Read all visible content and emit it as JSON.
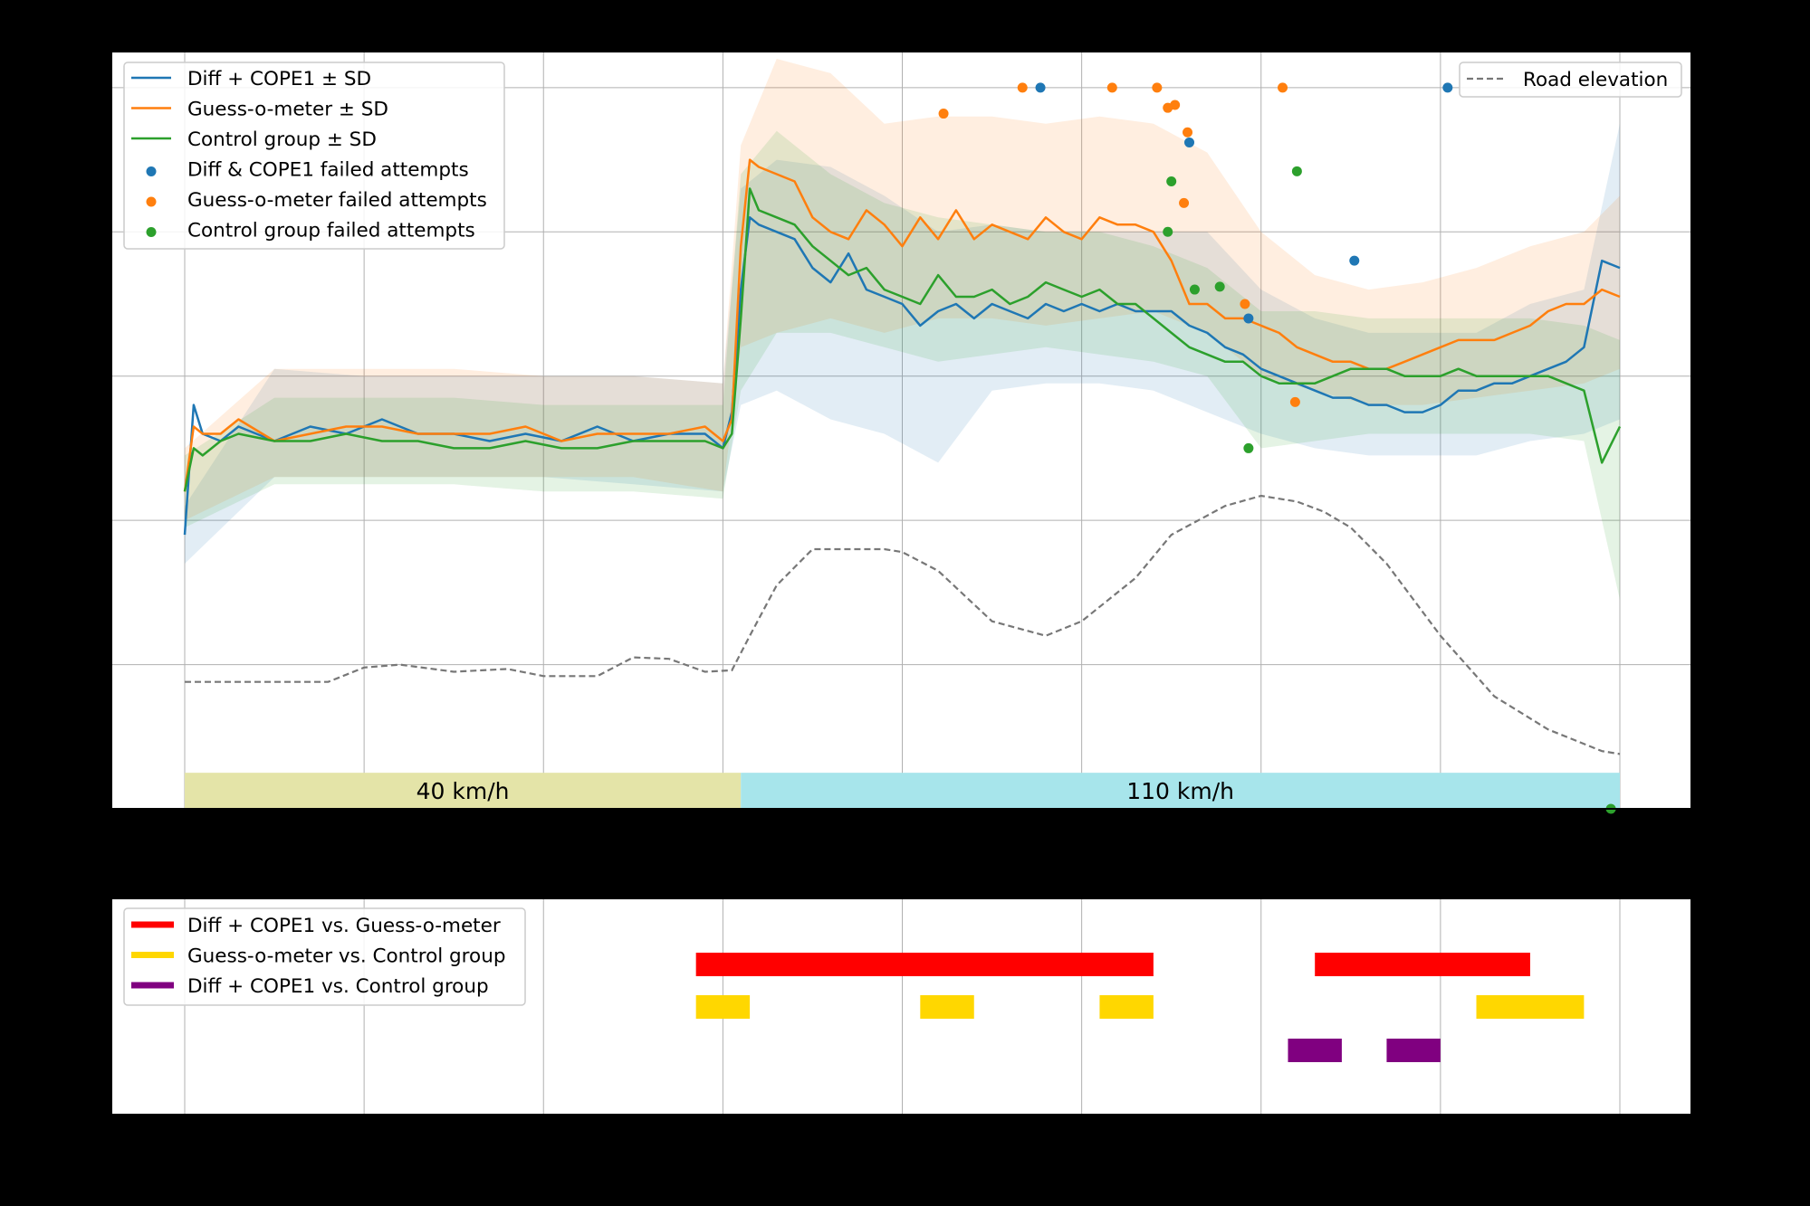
{
  "chart_data": [
    {
      "type": "line",
      "title": "",
      "xlabel": "",
      "ylabel": "",
      "xlim": [
        -0.4,
        8.4
      ],
      "ylim": [
        0,
        5.25
      ],
      "grid": true,
      "colors": {
        "diff": "#1f77b4",
        "guess": "#ff7f0e",
        "control": "#2ca02c",
        "elevation": "#777777",
        "zone40": "#e4e4a8",
        "zone110": "#a7e5eb"
      },
      "legend_upper_left": [
        "Diff + COPE1 ± SD",
        "Guess-o-meter ± SD",
        "Control group ± SD",
        "Diff & COPE1 failed attempts",
        "Guess-o-meter failed attempts",
        "Control group failed attempts"
      ],
      "legend_upper_right": [
        "Road elevation"
      ],
      "zones": [
        {
          "label": "40 km/h",
          "x": [
            0,
            3.1
          ]
        },
        {
          "label": "110 km/h",
          "x": [
            3.1,
            8.0
          ]
        }
      ],
      "series_means": [
        {
          "name": "Diff + COPE1",
          "x": [
            0,
            0.05,
            0.1,
            0.2,
            0.3,
            0.5,
            0.7,
            0.9,
            1.1,
            1.3,
            1.5,
            1.7,
            1.9,
            2.1,
            2.3,
            2.5,
            2.7,
            2.9,
            3.0,
            3.05,
            3.1,
            3.15,
            3.2,
            3.3,
            3.4,
            3.5,
            3.6,
            3.7,
            3.8,
            3.9,
            4.0,
            4.1,
            4.2,
            4.3,
            4.4,
            4.5,
            4.6,
            4.7,
            4.8,
            4.9,
            5.0,
            5.1,
            5.2,
            5.3,
            5.4,
            5.5,
            5.6,
            5.7,
            5.8,
            5.9,
            6.0,
            6.1,
            6.2,
            6.3,
            6.4,
            6.5,
            6.6,
            6.7,
            6.8,
            6.9,
            7.0,
            7.1,
            7.2,
            7.3,
            7.4,
            7.5,
            7.6,
            7.7,
            7.8,
            7.9,
            8.0
          ],
          "y": [
            1.9,
            2.8,
            2.6,
            2.55,
            2.65,
            2.55,
            2.65,
            2.6,
            2.7,
            2.6,
            2.6,
            2.55,
            2.6,
            2.55,
            2.65,
            2.55,
            2.6,
            2.6,
            2.5,
            2.75,
            3.6,
            4.1,
            4.05,
            4.0,
            3.95,
            3.75,
            3.65,
            3.85,
            3.6,
            3.55,
            3.5,
            3.35,
            3.45,
            3.5,
            3.4,
            3.5,
            3.45,
            3.4,
            3.5,
            3.45,
            3.5,
            3.45,
            3.5,
            3.45,
            3.45,
            3.45,
            3.35,
            3.3,
            3.2,
            3.15,
            3.05,
            3.0,
            2.95,
            2.9,
            2.85,
            2.85,
            2.8,
            2.8,
            2.75,
            2.75,
            2.8,
            2.9,
            2.9,
            2.95,
            2.95,
            3.0,
            3.05,
            3.1,
            3.2,
            3.8,
            3.75
          ]
        },
        {
          "name": "Guess-o-meter",
          "x": [
            0,
            0.05,
            0.1,
            0.2,
            0.3,
            0.5,
            0.7,
            0.9,
            1.1,
            1.3,
            1.5,
            1.7,
            1.9,
            2.1,
            2.3,
            2.5,
            2.7,
            2.9,
            3.0,
            3.05,
            3.1,
            3.15,
            3.2,
            3.3,
            3.4,
            3.5,
            3.6,
            3.7,
            3.8,
            3.9,
            4.0,
            4.1,
            4.2,
            4.3,
            4.4,
            4.5,
            4.6,
            4.7,
            4.8,
            4.9,
            5.0,
            5.1,
            5.2,
            5.3,
            5.4,
            5.5,
            5.6,
            5.7,
            5.8,
            5.9,
            6.0,
            6.1,
            6.2,
            6.3,
            6.4,
            6.5,
            6.6,
            6.7,
            6.8,
            6.9,
            7.0,
            7.1,
            7.2,
            7.3,
            7.4,
            7.5,
            7.6,
            7.7,
            7.8,
            7.9,
            8.0
          ],
          "y": [
            2.2,
            2.65,
            2.6,
            2.6,
            2.7,
            2.55,
            2.6,
            2.65,
            2.65,
            2.6,
            2.6,
            2.6,
            2.65,
            2.55,
            2.6,
            2.6,
            2.6,
            2.65,
            2.55,
            2.7,
            3.9,
            4.5,
            4.45,
            4.4,
            4.35,
            4.1,
            4.0,
            3.95,
            4.15,
            4.05,
            3.9,
            4.1,
            3.95,
            4.15,
            3.95,
            4.05,
            4.0,
            3.95,
            4.1,
            4.0,
            3.95,
            4.1,
            4.05,
            4.05,
            4.0,
            3.8,
            3.5,
            3.5,
            3.4,
            3.4,
            3.35,
            3.3,
            3.2,
            3.15,
            3.1,
            3.1,
            3.05,
            3.05,
            3.1,
            3.15,
            3.2,
            3.25,
            3.25,
            3.25,
            3.3,
            3.35,
            3.45,
            3.5,
            3.5,
            3.6,
            3.55
          ]
        },
        {
          "name": "Control group",
          "x": [
            0,
            0.05,
            0.1,
            0.2,
            0.3,
            0.5,
            0.7,
            0.9,
            1.1,
            1.3,
            1.5,
            1.7,
            1.9,
            2.1,
            2.3,
            2.5,
            2.7,
            2.9,
            3.0,
            3.05,
            3.1,
            3.15,
            3.2,
            3.3,
            3.4,
            3.5,
            3.6,
            3.7,
            3.8,
            3.9,
            4.0,
            4.1,
            4.2,
            4.3,
            4.4,
            4.5,
            4.6,
            4.7,
            4.8,
            4.9,
            5.0,
            5.1,
            5.2,
            5.3,
            5.4,
            5.5,
            5.6,
            5.7,
            5.8,
            5.9,
            6.0,
            6.1,
            6.2,
            6.3,
            6.4,
            6.5,
            6.6,
            6.7,
            6.8,
            6.9,
            7.0,
            7.1,
            7.2,
            7.3,
            7.4,
            7.5,
            7.6,
            7.7,
            7.8,
            7.9,
            8.0
          ],
          "y": [
            2.2,
            2.5,
            2.45,
            2.55,
            2.6,
            2.55,
            2.55,
            2.6,
            2.55,
            2.55,
            2.5,
            2.5,
            2.55,
            2.5,
            2.5,
            2.55,
            2.55,
            2.55,
            2.5,
            2.6,
            3.4,
            4.3,
            4.15,
            4.1,
            4.05,
            3.9,
            3.8,
            3.7,
            3.75,
            3.6,
            3.55,
            3.5,
            3.7,
            3.55,
            3.55,
            3.6,
            3.5,
            3.55,
            3.65,
            3.6,
            3.55,
            3.6,
            3.5,
            3.5,
            3.4,
            3.3,
            3.2,
            3.15,
            3.1,
            3.1,
            3.0,
            2.95,
            2.95,
            2.95,
            3.0,
            3.05,
            3.05,
            3.05,
            3.0,
            3.0,
            3.0,
            3.05,
            3.0,
            3.0,
            3.0,
            3.0,
            3.0,
            2.95,
            2.9,
            2.4,
            2.65
          ]
        }
      ],
      "series_sd": [
        {
          "name": "Diff + COPE1",
          "x": [
            0,
            0.5,
            1.0,
            1.5,
            2.0,
            2.5,
            3.0,
            3.1,
            3.3,
            3.6,
            3.9,
            4.2,
            4.5,
            4.8,
            5.1,
            5.4,
            5.7,
            6.0,
            6.3,
            6.6,
            6.9,
            7.2,
            7.5,
            7.8,
            8.0
          ],
          "lo": [
            1.7,
            2.3,
            2.3,
            2.3,
            2.3,
            2.25,
            2.2,
            2.8,
            2.9,
            2.7,
            2.6,
            2.4,
            2.9,
            2.95,
            2.95,
            2.9,
            2.75,
            2.6,
            2.5,
            2.45,
            2.45,
            2.45,
            2.55,
            2.6,
            2.7
          ],
          "hi": [
            2.1,
            3.05,
            3.0,
            3.0,
            3.0,
            3.0,
            2.95,
            4.3,
            4.5,
            4.45,
            4.25,
            4.0,
            4.05,
            4.0,
            4.0,
            4.0,
            4.0,
            3.6,
            3.4,
            3.3,
            3.3,
            3.3,
            3.5,
            3.6,
            4.75
          ]
        },
        {
          "name": "Guess-o-meter",
          "x": [
            0,
            0.5,
            1.0,
            1.5,
            2.0,
            2.5,
            3.0,
            3.1,
            3.3,
            3.6,
            3.9,
            4.2,
            4.5,
            4.8,
            5.1,
            5.4,
            5.7,
            6.0,
            6.3,
            6.6,
            6.9,
            7.2,
            7.5,
            7.8,
            8.0
          ],
          "lo": [
            2.0,
            2.3,
            2.3,
            2.3,
            2.3,
            2.3,
            2.2,
            3.2,
            3.3,
            3.4,
            3.3,
            3.4,
            3.4,
            3.35,
            3.4,
            3.45,
            3.3,
            3.0,
            2.9,
            2.8,
            2.8,
            2.85,
            2.9,
            2.95,
            3.05
          ],
          "hi": [
            2.5,
            3.05,
            3.05,
            3.05,
            3.0,
            3.0,
            2.95,
            4.6,
            5.2,
            5.1,
            4.75,
            4.8,
            4.8,
            4.75,
            4.8,
            4.75,
            4.55,
            4.0,
            3.7,
            3.6,
            3.65,
            3.75,
            3.9,
            4.0,
            4.25
          ]
        },
        {
          "name": "Control group",
          "x": [
            0,
            0.5,
            1.0,
            1.5,
            2.0,
            2.5,
            3.0,
            3.1,
            3.3,
            3.6,
            3.9,
            4.2,
            4.5,
            4.8,
            5.1,
            5.4,
            5.7,
            6.0,
            6.3,
            6.6,
            6.9,
            7.2,
            7.5,
            7.8,
            8.0
          ],
          "lo": [
            1.95,
            2.25,
            2.25,
            2.25,
            2.2,
            2.2,
            2.15,
            2.9,
            3.3,
            3.3,
            3.2,
            3.1,
            3.15,
            3.2,
            3.15,
            3.1,
            3.0,
            2.5,
            2.55,
            2.6,
            2.6,
            2.6,
            2.6,
            2.55,
            1.45
          ],
          "hi": [
            2.45,
            2.85,
            2.85,
            2.85,
            2.8,
            2.8,
            2.8,
            4.4,
            4.7,
            4.4,
            4.2,
            4.1,
            4.05,
            4.0,
            4.0,
            3.9,
            3.75,
            3.45,
            3.45,
            3.4,
            3.4,
            3.4,
            3.4,
            3.35,
            3.25
          ]
        }
      ],
      "failed_attempts": [
        {
          "name": "Diff & COPE1 failed attempts",
          "x": [
            4.77,
            5.6,
            5.93,
            6.52,
            7.04
          ],
          "y": [
            5.0,
            4.62,
            3.4,
            3.8,
            5.0
          ]
        },
        {
          "name": "Guess-o-meter failed attempts",
          "x": [
            4.23,
            4.67,
            5.17,
            5.42,
            5.52,
            5.48,
            5.59,
            5.57,
            5.91,
            6.12,
            6.19
          ],
          "y": [
            4.82,
            5.0,
            5.0,
            5.0,
            4.88,
            4.86,
            4.69,
            4.2,
            3.5,
            5.0,
            2.82
          ]
        },
        {
          "name": "Control group failed attempts",
          "x": [
            5.5,
            5.48,
            5.63,
            5.77,
            5.93,
            6.2,
            7.95
          ],
          "y": [
            4.35,
            4.0,
            3.6,
            3.62,
            2.5,
            4.42,
            0.0
          ]
        }
      ],
      "road_elevation": {
        "name": "Road elevation",
        "x": [
          0,
          0.8,
          1.0,
          1.2,
          1.5,
          1.8,
          2.0,
          2.3,
          2.5,
          2.7,
          2.9,
          3.05,
          3.15,
          3.3,
          3.5,
          3.7,
          3.9,
          4.0,
          4.2,
          4.5,
          4.8,
          5.0,
          5.3,
          5.5,
          5.8,
          6.0,
          6.2,
          6.35,
          6.5,
          6.7,
          7.0,
          7.3,
          7.6,
          7.9,
          8.0
        ],
        "y": [
          0.88,
          0.88,
          0.98,
          1.0,
          0.95,
          0.97,
          0.92,
          0.92,
          1.05,
          1.04,
          0.95,
          0.96,
          1.2,
          1.55,
          1.8,
          1.8,
          1.8,
          1.78,
          1.65,
          1.3,
          1.2,
          1.3,
          1.6,
          1.9,
          2.1,
          2.17,
          2.13,
          2.06,
          1.95,
          1.7,
          1.2,
          0.78,
          0.55,
          0.4,
          0.38
        ]
      }
    },
    {
      "type": "bar",
      "title": "",
      "xlabel": "",
      "ylabel": "",
      "legend": [
        "Diff + COPE1 vs. Guess-o-meter",
        "Guess-o-meter vs. Control group",
        "Diff + COPE1 vs. Control group"
      ],
      "colors": [
        "#ff0000",
        "#ffd700",
        "#800080"
      ],
      "segments": [
        {
          "pair": "Diff + COPE1 vs. Guess-o-meter",
          "x": [
            [
              2.85,
              5.4
            ],
            [
              6.3,
              7.5
            ]
          ]
        },
        {
          "pair": "Guess-o-meter vs. Control group",
          "x": [
            [
              2.85,
              3.15
            ],
            [
              4.1,
              4.4
            ],
            [
              5.1,
              5.4
            ],
            [
              7.2,
              7.8
            ]
          ]
        },
        {
          "pair": "Diff + COPE1 vs. Control group",
          "x": [
            [
              6.15,
              6.45
            ],
            [
              6.7,
              7.0
            ]
          ]
        }
      ]
    }
  ]
}
